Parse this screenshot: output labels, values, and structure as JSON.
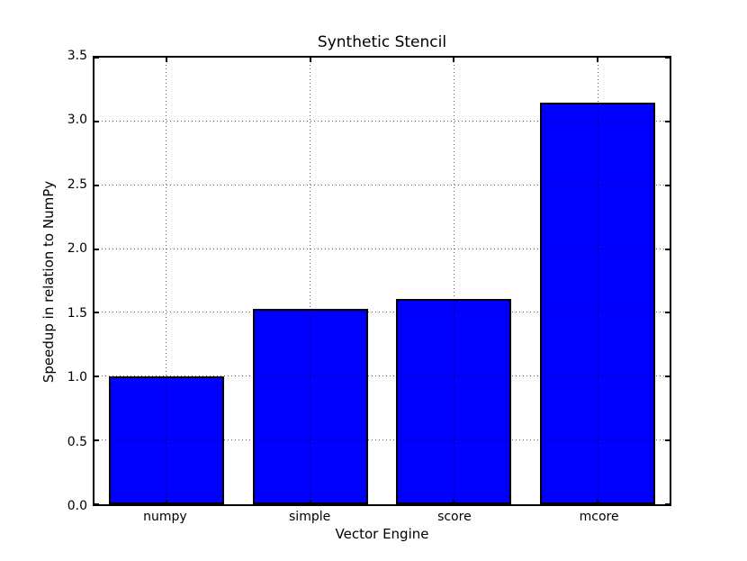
{
  "chart_data": {
    "type": "bar",
    "title": "Synthetic Stencil",
    "xlabel": "Vector Engine",
    "ylabel": "Speedup in relation to NumPy",
    "categories": [
      "numpy",
      "simple",
      "score",
      "mcore"
    ],
    "values": [
      1.0,
      1.53,
      1.61,
      3.15
    ],
    "ylim": [
      0.0,
      3.5
    ],
    "yticks": [
      0.0,
      0.5,
      1.0,
      1.5,
      2.0,
      2.5,
      3.0,
      3.5
    ],
    "ytick_labels": [
      "0.0",
      "0.5",
      "1.0",
      "1.5",
      "2.0",
      "2.5",
      "3.0",
      "3.5"
    ],
    "grid": true,
    "grid_linestyle": "dotted",
    "legend_position": "none",
    "bar_width_fraction": 0.8,
    "bar_color": "#0000ff",
    "bar_edge_color": "#000000",
    "background_color": "#ffffff"
  }
}
